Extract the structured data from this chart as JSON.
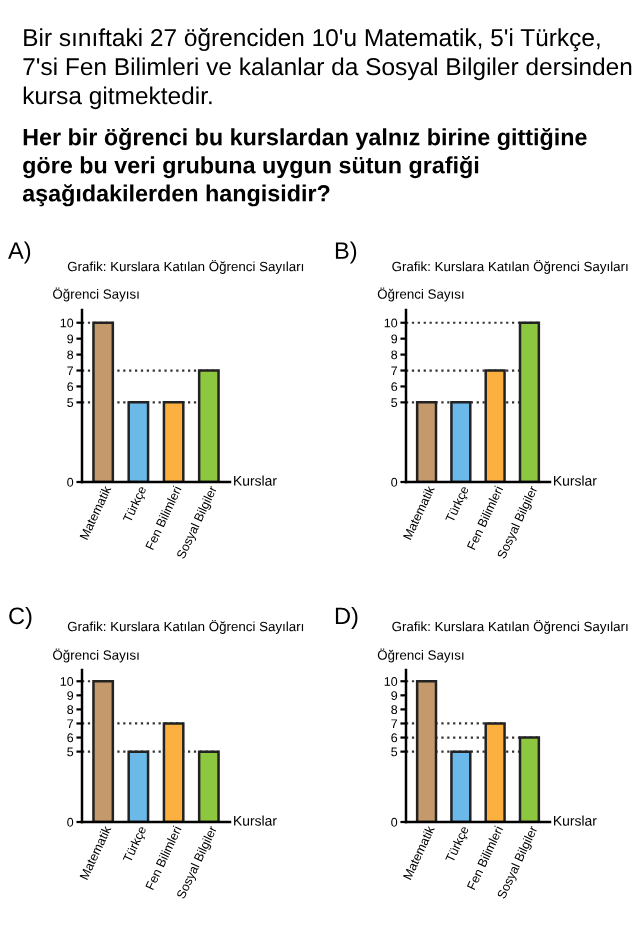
{
  "chart_data": [
    {
      "type": "bar",
      "title": "Grafik: Kurslara Katılan Öğrenci Sayıları",
      "ylabel": "Öğrenci Sayısı",
      "xlabel": "Kurslar",
      "annotations": [
        "Bir sınıftaki 27 öğrenciden 10'u Matematik, 5'i Türkçe, 7'si Fen Bilimleri ve kalanlar da Sosyal Bilgiler dersinden kursa gitmektedir.",
        "Her bir öğrenci bu kurslardan yalnız birine gittiğine göre bu veri grubuna uygun sütun grafiği aşağıdakilerden hangisidir?",
        "A)"
      ],
      "categories": [
        "Matematik",
        "Türkçe",
        "Fen Bilimleri",
        "Sosyal Bilgiler"
      ],
      "values": [
        10,
        5,
        5,
        7
      ],
      "colors": [
        "#c49a6c",
        "#6ab9e8",
        "#fbb040",
        "#8dc63f"
      ],
      "ylim": [
        0,
        10.8
      ],
      "yticks": [
        0,
        5,
        6,
        7,
        8,
        9,
        10
      ],
      "ref_lines": [
        {
          "axis": "y",
          "value": 10,
          "line_style": "dotted"
        },
        {
          "axis": "y",
          "value": 7,
          "line_style": "dotted"
        },
        {
          "axis": "y",
          "value": 5,
          "line_style": "dotted"
        }
      ]
    },
    {
      "type": "bar",
      "title": "Grafik: Kurslara Katılan Öğrenci Sayıları",
      "ylabel": "Öğrenci Sayısı",
      "xlabel": "Kurslar",
      "annotations": [
        "B)"
      ],
      "categories": [
        "Matematik",
        "Türkçe",
        "Fen Bilimleri",
        "Sosyal Bilgiler"
      ],
      "values": [
        5,
        5,
        7,
        10
      ],
      "colors": [
        "#c49a6c",
        "#6ab9e8",
        "#fbb040",
        "#8dc63f"
      ],
      "ylim": [
        0,
        10.8
      ],
      "yticks": [
        0,
        5,
        6,
        7,
        8,
        9,
        10
      ],
      "ref_lines": [
        {
          "axis": "y",
          "value": 10,
          "line_style": "dotted"
        },
        {
          "axis": "y",
          "value": 7,
          "line_style": "dotted"
        },
        {
          "axis": "y",
          "value": 5,
          "line_style": "dotted"
        }
      ]
    },
    {
      "type": "bar",
      "title": "Grafik: Kurslara Katılan Öğrenci Sayıları",
      "ylabel": "Öğrenci Sayısı",
      "xlabel": "Kurslar",
      "annotations": [
        "C)"
      ],
      "categories": [
        "Matematik",
        "Türkçe",
        "Fen Bilimleri",
        "Sosyal Bilgiler"
      ],
      "values": [
        10,
        5,
        7,
        5
      ],
      "colors": [
        "#c49a6c",
        "#6ab9e8",
        "#fbb040",
        "#8dc63f"
      ],
      "ylim": [
        0,
        10.8
      ],
      "yticks": [
        0,
        5,
        6,
        7,
        8,
        9,
        10
      ],
      "ref_lines": [
        {
          "axis": "y",
          "value": 10,
          "line_style": "dotted"
        },
        {
          "axis": "y",
          "value": 7,
          "line_style": "dotted"
        },
        {
          "axis": "y",
          "value": 5,
          "line_style": "dotted"
        }
      ]
    },
    {
      "type": "bar",
      "title": "Grafik: Kurslara Katılan Öğrenci Sayıları",
      "ylabel": "Öğrenci Sayısı",
      "xlabel": "Kurslar",
      "annotations": [
        "D)"
      ],
      "categories": [
        "Matematik",
        "Türkçe",
        "Fen Bilimleri",
        "Sosyal Bilgiler"
      ],
      "values": [
        10,
        5,
        7,
        6
      ],
      "colors": [
        "#c49a6c",
        "#6ab9e8",
        "#fbb040",
        "#8dc63f"
      ],
      "ylim": [
        0,
        10.8
      ],
      "yticks": [
        0,
        5,
        6,
        7,
        8,
        9,
        10
      ],
      "ref_lines": [
        {
          "axis": "y",
          "value": 10,
          "line_style": "dotted"
        },
        {
          "axis": "y",
          "value": 7,
          "line_style": "dotted"
        },
        {
          "axis": "y",
          "value": 6,
          "line_style": "dotted"
        },
        {
          "axis": "y",
          "value": 5,
          "line_style": "dotted"
        }
      ]
    }
  ]
}
